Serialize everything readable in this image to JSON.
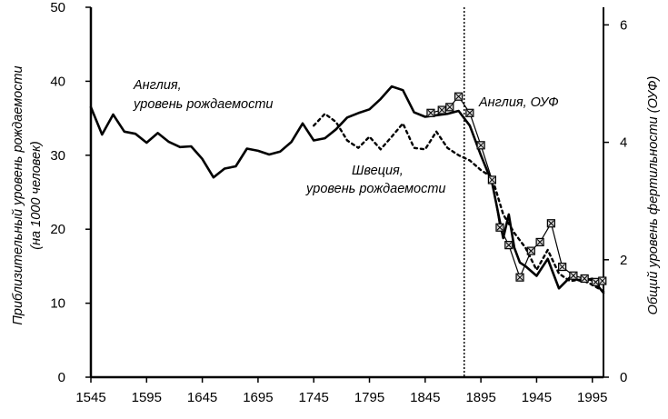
{
  "chart_data": {
    "type": "line",
    "x_ticks": [
      1545,
      1595,
      1645,
      1695,
      1745,
      1795,
      1845,
      1895,
      1945,
      1995
    ],
    "xlim": [
      1545,
      2005
    ],
    "y_left": {
      "label_line1": "Приблизительный уровень рождаемости",
      "label_line2": "(на 1000 человек)",
      "ticks": [
        0,
        10,
        20,
        30,
        40,
        50
      ],
      "ylim": [
        0,
        50
      ]
    },
    "y_right": {
      "label": "Общий уровень фертильности (ОУФ)",
      "ticks": [
        0,
        2,
        4,
        6
      ],
      "ylim": [
        0,
        6.3
      ]
    },
    "reference_line": {
      "x": 1880,
      "style": "dotted"
    },
    "annotations": {
      "england_birth_line1": "Англия,",
      "england_birth_line2": "уровень рождаемости",
      "england_tfr": "Англия, ОУФ",
      "sweden_birth_line1": "Швеция,",
      "sweden_birth_line2": "уровень рождаемости"
    },
    "series": [
      {
        "axis": "left",
        "style": "solid-thick",
        "x": [
          1545,
          1555,
          1565,
          1575,
          1585,
          1595,
          1605,
          1615,
          1625,
          1635,
          1645,
          1655,
          1665,
          1675,
          1685,
          1695,
          1705,
          1715,
          1725,
          1735,
          1745,
          1755,
          1765,
          1775,
          1785,
          1795,
          1805,
          1815,
          1825,
          1835,
          1845,
          1855,
          1865,
          1875,
          1885,
          1895,
          1905,
          1915,
          1920,
          1925,
          1930,
          1935,
          1945,
          1955,
          1960,
          1965,
          1975,
          1985,
          1995,
          2005
        ],
        "values": [
          36.5,
          32.8,
          35.5,
          33.2,
          32.9,
          31.7,
          33.0,
          31.8,
          31.1,
          31.2,
          29.5,
          27.0,
          28.2,
          28.5,
          30.9,
          30.6,
          30.1,
          30.5,
          31.8,
          34.3,
          32.0,
          32.3,
          33.5,
          35.1,
          35.7,
          36.2,
          37.6,
          39.3,
          38.8,
          35.8,
          35.2,
          35.4,
          35.6,
          36.0,
          34.0,
          30.0,
          26.3,
          18.8,
          22.0,
          17.5,
          15.5,
          15.0,
          13.7,
          16.0,
          14.0,
          12.0,
          13.5,
          13.0,
          13.3,
          11.4
        ]
      },
      {
        "axis": "left",
        "style": "dotted",
        "x": [
          1745,
          1755,
          1765,
          1775,
          1785,
          1795,
          1805,
          1815,
          1825,
          1835,
          1845,
          1855,
          1865,
          1875,
          1885,
          1895,
          1905,
          1915,
          1925,
          1935,
          1945,
          1955,
          1965,
          1975,
          1985,
          1995,
          2005
        ],
        "values": [
          34.0,
          35.6,
          34.5,
          32.0,
          31.0,
          32.5,
          30.8,
          32.5,
          34.3,
          31.0,
          30.8,
          33.2,
          31.0,
          30.0,
          29.3,
          28.0,
          27.0,
          22.0,
          19.5,
          17.5,
          14.5,
          17.2,
          14.0,
          13.0,
          13.2,
          12.5,
          11.6
        ]
      },
      {
        "axis": "right",
        "style": "marker-line",
        "x": [
          1850,
          1860,
          1867,
          1875,
          1885,
          1895,
          1905,
          1912,
          1920,
          1930,
          1940,
          1948,
          1958,
          1968,
          1978,
          1988,
          1998,
          2004
        ],
        "values": [
          4.5,
          4.55,
          4.6,
          4.78,
          4.5,
          3.95,
          3.36,
          2.55,
          2.25,
          1.7,
          2.15,
          2.3,
          2.62,
          1.88,
          1.73,
          1.68,
          1.62,
          1.64
        ]
      }
    ]
  }
}
